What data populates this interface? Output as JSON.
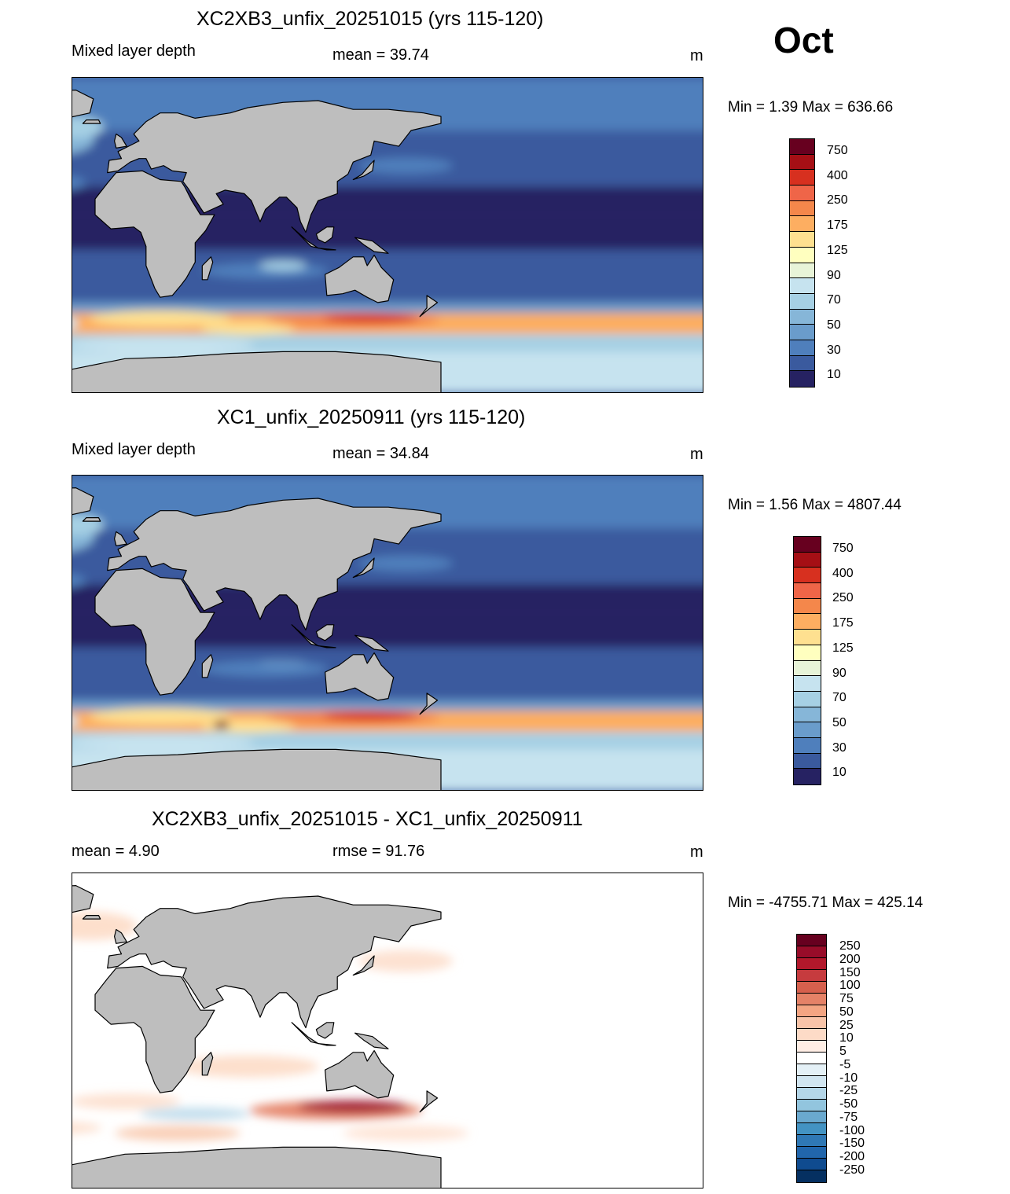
{
  "month": "Oct",
  "panels": [
    {
      "title": "XC2XB3_unfix_20251015 (yrs 115-120)",
      "left_label": "Mixed layer depth",
      "center_label": "mean =  39.74",
      "units": "m",
      "minmax": "Min =    1.39 Max = 636.66"
    },
    {
      "title": "XC1_unfix_20250911 (yrs 115-120)",
      "left_label": "Mixed layer depth",
      "center_label": "mean =  34.84",
      "units": "m",
      "minmax": "Min =    1.56 Max = 4807.44"
    },
    {
      "title": "XC2XB3_unfix_20251015 - XC1_unfix_20250911",
      "left_label": "mean =    4.90",
      "center_label": "rmse =  91.76",
      "units": "m",
      "minmax": "Min = -4755.71 Max = 425.14"
    }
  ],
  "colorbar_depth": {
    "labels": [
      "750",
      "400",
      "250",
      "175",
      "125",
      "90",
      "70",
      "50",
      "30",
      "10"
    ],
    "colors": [
      "#67001f",
      "#a50f15",
      "#d7301f",
      "#ef6548",
      "#f4874b",
      "#fdae61",
      "#fee090",
      "#ffffbf",
      "#e8f4d8",
      "#c6e3ef",
      "#a6d0e4",
      "#86b6d8",
      "#6a9ccb",
      "#4f7fbc",
      "#3a5a9e",
      "#262262"
    ]
  },
  "colorbar_diff": {
    "labels": [
      "250",
      "200",
      "150",
      "100",
      "75",
      "50",
      "25",
      "10",
      "5",
      "-5",
      "-10",
      "-25",
      "-50",
      "-75",
      "-100",
      "-150",
      "-200",
      "-250"
    ],
    "colors": [
      "#67001f",
      "#980c29",
      "#b2182b",
      "#c63b3e",
      "#d6604d",
      "#e58267",
      "#f4a582",
      "#f8c4a8",
      "#fddbc7",
      "#ffeee5",
      "#ffffff",
      "#e4f0f6",
      "#d1e5f0",
      "#b4d6e8",
      "#92c5de",
      "#6aa9cf",
      "#4393c3",
      "#2f78b5",
      "#2166ac",
      "#0f4b8f",
      "#053061"
    ]
  }
}
